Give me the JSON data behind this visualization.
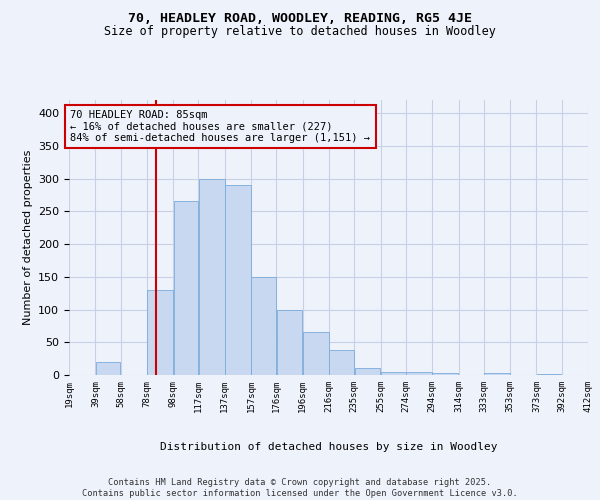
{
  "title1": "70, HEADLEY ROAD, WOODLEY, READING, RG5 4JE",
  "title2": "Size of property relative to detached houses in Woodley",
  "xlabel": "Distribution of detached houses by size in Woodley",
  "ylabel": "Number of detached properties",
  "bar_edges": [
    19,
    39,
    58,
    78,
    98,
    117,
    137,
    157,
    176,
    196,
    216,
    235,
    255,
    274,
    294,
    314,
    333,
    353,
    373,
    392,
    412
  ],
  "bar_heights": [
    0,
    20,
    0,
    130,
    265,
    300,
    290,
    150,
    100,
    65,
    38,
    10,
    4,
    4,
    3,
    0,
    3,
    0,
    1,
    0
  ],
  "bar_color": "#c8d8f0",
  "bar_edgecolor": "#7aabdb",
  "vline_x": 85,
  "vline_color": "#cc0000",
  "annotation_text": "70 HEADLEY ROAD: 85sqm\n← 16% of detached houses are smaller (227)\n84% of semi-detached houses are larger (1,151) →",
  "annotation_box_color": "#cc0000",
  "ylim": [
    0,
    420
  ],
  "yticks": [
    0,
    50,
    100,
    150,
    200,
    250,
    300,
    350,
    400
  ],
  "tick_labels": [
    "19sqm",
    "39sqm",
    "58sqm",
    "78sqm",
    "98sqm",
    "117sqm",
    "137sqm",
    "157sqm",
    "176sqm",
    "196sqm",
    "216sqm",
    "235sqm",
    "255sqm",
    "274sqm",
    "294sqm",
    "314sqm",
    "333sqm",
    "353sqm",
    "373sqm",
    "392sqm",
    "412sqm"
  ],
  "footer_text": "Contains HM Land Registry data © Crown copyright and database right 2025.\nContains public sector information licensed under the Open Government Licence v3.0.",
  "background_color": "#eef2fb",
  "grid_color": "#c8d0e8"
}
